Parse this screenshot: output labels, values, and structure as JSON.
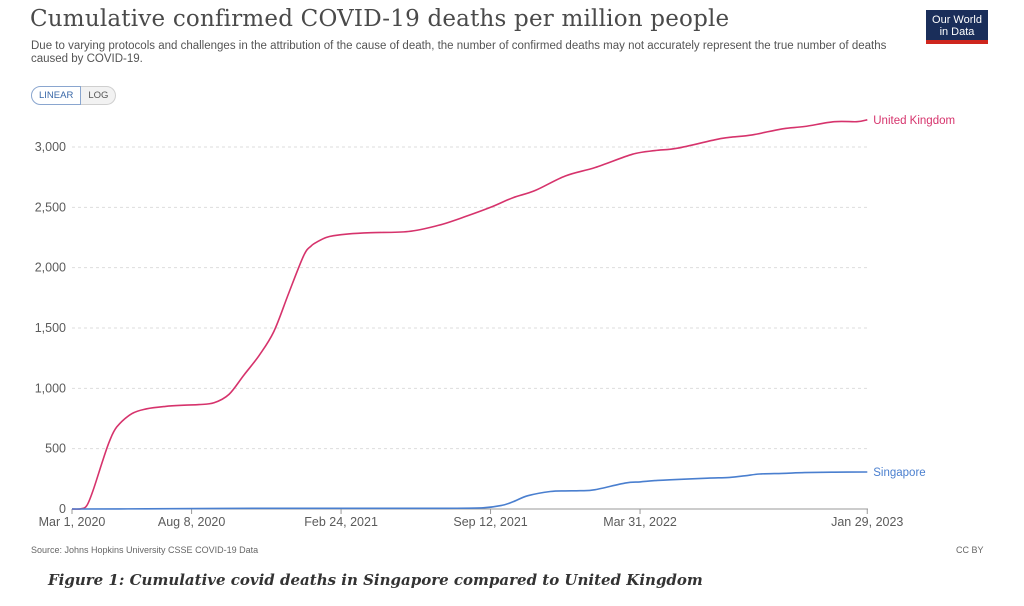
{
  "header": {
    "title": "Cumulative confirmed COVID-19 deaths per million people",
    "subtitle": "Due to varying protocols and challenges in the attribution of the cause of death, the number of confirmed deaths may not accurately represent the true number of deaths caused by COVID-19.",
    "logo_line1": "Our World",
    "logo_line2": "in Data"
  },
  "controls": {
    "linear_label": "LINEAR",
    "log_label": "LOG",
    "selected": "LINEAR"
  },
  "footer": {
    "source": "Source: Johns Hopkins University CSSE COVID-19 Data",
    "license": "CC BY",
    "caption": "Figure 1: Cumulative covid deaths in Singapore compared to United Kingdom"
  },
  "colors": {
    "uk": "#d6336c",
    "sg": "#4a7fcf",
    "grid": "#dddddd",
    "axis": "#999999",
    "text": "#5b5b5b"
  },
  "chart_data": {
    "type": "line",
    "title": "Cumulative confirmed COVID-19 deaths per million people",
    "xlabel": "",
    "ylabel": "",
    "ylim": [
      0,
      3200
    ],
    "yticks": [
      0,
      500,
      1000,
      1500,
      2000,
      2500,
      3000
    ],
    "ytick_labels": [
      "0",
      "500",
      "1,000",
      "1,500",
      "2,000",
      "2,500",
      "3,000"
    ],
    "x_range_days": [
      0,
      1065
    ],
    "xticks": [
      {
        "day": 0,
        "label": "Mar 1, 2020"
      },
      {
        "day": 160,
        "label": "Aug 8, 2020"
      },
      {
        "day": 360,
        "label": "Feb 24, 2021"
      },
      {
        "day": 560,
        "label": "Sep 12, 2021"
      },
      {
        "day": 760,
        "label": "Mar 31, 2022"
      },
      {
        "day": 1064,
        "label": "Jan 29, 2023"
      }
    ],
    "series": [
      {
        "name": "United Kingdom",
        "x": [
          0,
          12,
          20,
          28,
          40,
          50,
          60,
          80,
          100,
          125,
          150,
          170,
          190,
          210,
          230,
          250,
          270,
          290,
          310,
          320,
          330,
          340,
          350,
          370,
          400,
          450,
          490,
          520,
          560,
          590,
          620,
          660,
          700,
          750,
          780,
          810,
          860,
          880,
          910,
          950,
          980,
          1020,
          1050,
          1064
        ],
        "values": [
          0,
          2,
          30,
          150,
          380,
          560,
          680,
          790,
          830,
          850,
          860,
          865,
          880,
          950,
          1110,
          1270,
          1470,
          1790,
          2100,
          2180,
          2220,
          2250,
          2265,
          2280,
          2290,
          2300,
          2350,
          2410,
          2500,
          2580,
          2640,
          2760,
          2830,
          2940,
          2970,
          2990,
          3060,
          3080,
          3100,
          3150,
          3170,
          3210,
          3210,
          3225
        ]
      },
      {
        "name": "Singapore",
        "x": [
          0,
          100,
          200,
          300,
          400,
          500,
          550,
          575,
          590,
          610,
          640,
          660,
          680,
          700,
          740,
          760,
          780,
          800,
          850,
          880,
          900,
          920,
          950,
          980,
          1020,
          1064
        ],
        "values": [
          0,
          2,
          5,
          6,
          6,
          6,
          10,
          30,
          60,
          110,
          145,
          150,
          152,
          160,
          215,
          225,
          235,
          242,
          255,
          262,
          275,
          290,
          295,
          302,
          305,
          307
        ]
      }
    ]
  }
}
